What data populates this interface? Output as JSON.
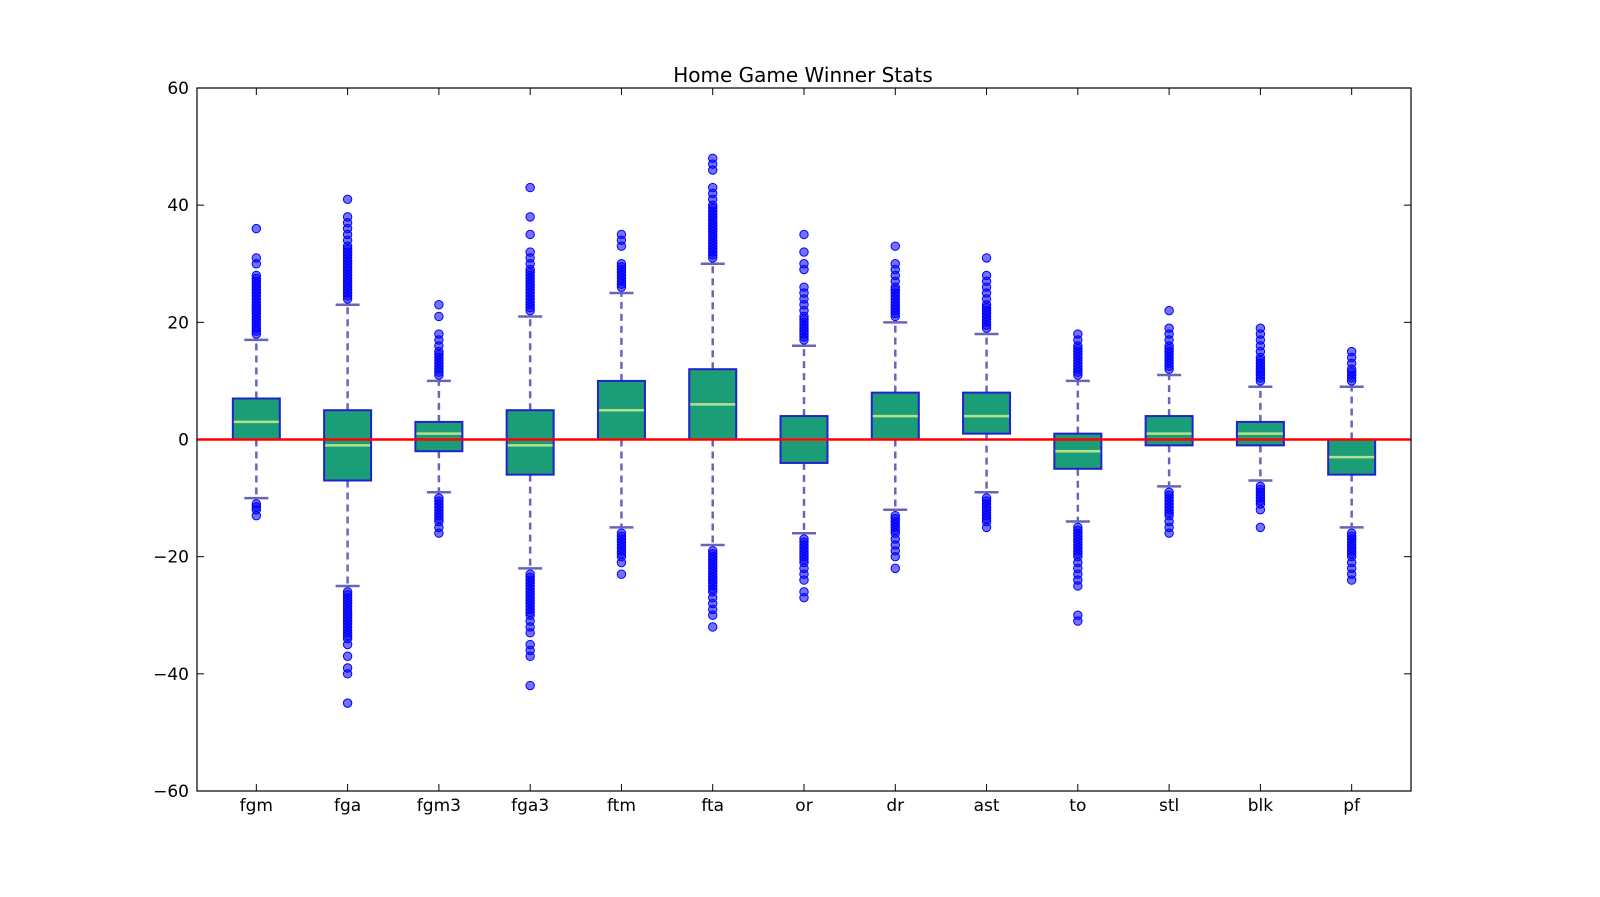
{
  "chart_data": {
    "type": "box",
    "title": "Home Game Winner Stats",
    "xlabel": "",
    "ylabel": "",
    "ylim": [
      -60,
      60
    ],
    "yticks": [
      -60,
      -40,
      -20,
      0,
      20,
      40,
      60
    ],
    "reference_line": {
      "y": 0,
      "color": "#ff0000"
    },
    "colors": {
      "box_fill": "#1b9e77",
      "box_edge": "#2222cc",
      "median": "#b3e28a",
      "whisker": "#6a64b8",
      "flier": "#0000ff"
    },
    "categories": [
      "fgm",
      "fga",
      "fgm3",
      "fga3",
      "ftm",
      "fta",
      "or",
      "dr",
      "ast",
      "to",
      "stl",
      "blk",
      "pf"
    ],
    "boxes": [
      {
        "label": "fgm",
        "whislo": -10,
        "q1": 0,
        "median": 3,
        "q3": 7,
        "whishi": 17,
        "fliers_high": [
          18,
          18.5,
          19,
          19.5,
          20,
          20.5,
          21,
          21.5,
          22,
          22.5,
          23,
          23.5,
          24,
          24.5,
          25,
          25.5,
          26,
          26.5,
          27,
          27.5,
          28,
          30,
          31,
          36
        ],
        "fliers_low": [
          -11,
          -11.5,
          -12,
          -13
        ]
      },
      {
        "label": "fga",
        "whislo": -25,
        "q1": -7,
        "median": -1,
        "q3": 5,
        "whishi": 23,
        "fliers_high": [
          24,
          24.5,
          25,
          25.5,
          26,
          26.5,
          27,
          27.5,
          28,
          28.5,
          29,
          29.5,
          30,
          30.5,
          31,
          31.5,
          32,
          32.5,
          33,
          34,
          35,
          36,
          37,
          38,
          41
        ],
        "fliers_low": [
          -26,
          -26.5,
          -27,
          -27.5,
          -28,
          -28.5,
          -29,
          -29.5,
          -30,
          -30.5,
          -31,
          -31.5,
          -32,
          -32.5,
          -33,
          -33.5,
          -34,
          -35,
          -37,
          -39,
          -40,
          -45
        ]
      },
      {
        "label": "fgm3",
        "whislo": -9,
        "q1": -2,
        "median": 1,
        "q3": 3,
        "whishi": 10,
        "fliers_high": [
          11,
          11.5,
          12,
          12.5,
          13,
          13.5,
          14,
          14.5,
          15,
          16,
          17,
          18,
          21,
          23
        ],
        "fliers_low": [
          -10,
          -10.5,
          -11,
          -11.5,
          -12,
          -12.5,
          -13,
          -13.5,
          -14,
          -15,
          -16
        ]
      },
      {
        "label": "fga3",
        "whislo": -22,
        "q1": -6,
        "median": -1,
        "q3": 5,
        "whishi": 21,
        "fliers_high": [
          22,
          22.5,
          23,
          23.5,
          24,
          24.5,
          25,
          25.5,
          26,
          26.5,
          27,
          27.5,
          28,
          28.5,
          29,
          30,
          31,
          32,
          35,
          38,
          43
        ],
        "fliers_low": [
          -23,
          -23.5,
          -24,
          -24.5,
          -25,
          -25.5,
          -26,
          -26.5,
          -27,
          -27.5,
          -28,
          -28.5,
          -29,
          -29.5,
          -30,
          -31,
          -32,
          -33,
          -35,
          -36,
          -37,
          -42
        ]
      },
      {
        "label": "ftm",
        "whislo": -15,
        "q1": 0,
        "median": 5,
        "q3": 10,
        "whishi": 25,
        "fliers_high": [
          26,
          26.5,
          27,
          27.5,
          28,
          28.5,
          29,
          29.5,
          30,
          33,
          34,
          35
        ],
        "fliers_low": [
          -16,
          -16.5,
          -17,
          -17.5,
          -18,
          -18.5,
          -19,
          -19.5,
          -20,
          -21,
          -23
        ]
      },
      {
        "label": "fta",
        "whislo": -18,
        "q1": 0,
        "median": 6,
        "q3": 12,
        "whishi": 30,
        "fliers_high": [
          31,
          31.5,
          32,
          32.5,
          33,
          33.5,
          34,
          34.5,
          35,
          35.5,
          36,
          36.5,
          37,
          37.5,
          38,
          38.5,
          39,
          39.5,
          40,
          41,
          42,
          43,
          46,
          47,
          48
        ],
        "fliers_low": [
          -19,
          -19.5,
          -20,
          -20.5,
          -21,
          -21.5,
          -22,
          -22.5,
          -23,
          -23.5,
          -24,
          -24.5,
          -25,
          -25.5,
          -26,
          -27,
          -28,
          -29,
          -30,
          -32
        ]
      },
      {
        "label": "or",
        "whislo": -16,
        "q1": -4,
        "median": 0,
        "q3": 4,
        "whishi": 16,
        "fliers_high": [
          17,
          17.5,
          18,
          18.5,
          19,
          19.5,
          20,
          20.5,
          21,
          22,
          23,
          24,
          25,
          26,
          29,
          30,
          32,
          35
        ],
        "fliers_low": [
          -17,
          -17.5,
          -18,
          -18.5,
          -19,
          -19.5,
          -20,
          -20.5,
          -21,
          -22,
          -23,
          -24,
          -26,
          -27
        ]
      },
      {
        "label": "dr",
        "whislo": -12,
        "q1": 0,
        "median": 4,
        "q3": 8,
        "whishi": 20,
        "fliers_high": [
          21,
          21.5,
          22,
          22.5,
          23,
          23.5,
          24,
          24.5,
          25,
          25.5,
          26,
          27,
          28,
          29,
          30,
          33
        ],
        "fliers_low": [
          -13,
          -13.5,
          -14,
          -14.5,
          -15,
          -15.5,
          -16,
          -17,
          -18,
          -19,
          -20,
          -22
        ]
      },
      {
        "label": "ast",
        "whislo": -9,
        "q1": 1,
        "median": 4,
        "q3": 8,
        "whishi": 18,
        "fliers_high": [
          19,
          19.5,
          20,
          20.5,
          21,
          21.5,
          22,
          22.5,
          23,
          24,
          25,
          26,
          27,
          28,
          31
        ],
        "fliers_low": [
          -10,
          -10.5,
          -11,
          -11.5,
          -12,
          -12.5,
          -13,
          -13.5,
          -14,
          -15
        ]
      },
      {
        "label": "to",
        "whislo": -14,
        "q1": -5,
        "median": -2,
        "q3": 1,
        "whishi": 10,
        "fliers_high": [
          11,
          11.5,
          12,
          12.5,
          13,
          13.5,
          14,
          14.5,
          15,
          15.5,
          16,
          17,
          18
        ],
        "fliers_low": [
          -15,
          -15.5,
          -16,
          -16.5,
          -17,
          -17.5,
          -18,
          -18.5,
          -19,
          -19.5,
          -20,
          -21,
          -22,
          -23,
          -24,
          -25,
          -30,
          -31
        ]
      },
      {
        "label": "stl",
        "whislo": -8,
        "q1": -1,
        "median": 1,
        "q3": 4,
        "whishi": 11,
        "fliers_high": [
          12,
          12.5,
          13,
          13.5,
          14,
          14.5,
          15,
          15.5,
          16,
          17,
          18,
          19,
          22
        ],
        "fliers_low": [
          -9,
          -9.5,
          -10,
          -10.5,
          -11,
          -11.5,
          -12,
          -12.5,
          -13,
          -14,
          -15,
          -16
        ]
      },
      {
        "label": "blk",
        "whislo": -7,
        "q1": -1,
        "median": 1,
        "q3": 3,
        "whishi": 9,
        "fliers_high": [
          10,
          10.5,
          11,
          11.5,
          12,
          12.5,
          13,
          13.5,
          14,
          15,
          16,
          17,
          18,
          19
        ],
        "fliers_low": [
          -8,
          -8.5,
          -9,
          -9.5,
          -10,
          -10.5,
          -11,
          -12,
          -15
        ]
      },
      {
        "label": "pf",
        "whislo": -15,
        "q1": -6,
        "median": -3,
        "q3": 0,
        "whishi": 9,
        "fliers_high": [
          10,
          10.5,
          11,
          11.5,
          12,
          13,
          14,
          15
        ],
        "fliers_low": [
          -16,
          -16.5,
          -17,
          -17.5,
          -18,
          -18.5,
          -19,
          -19.5,
          -20,
          -21,
          -22,
          -23,
          -24
        ]
      }
    ]
  }
}
